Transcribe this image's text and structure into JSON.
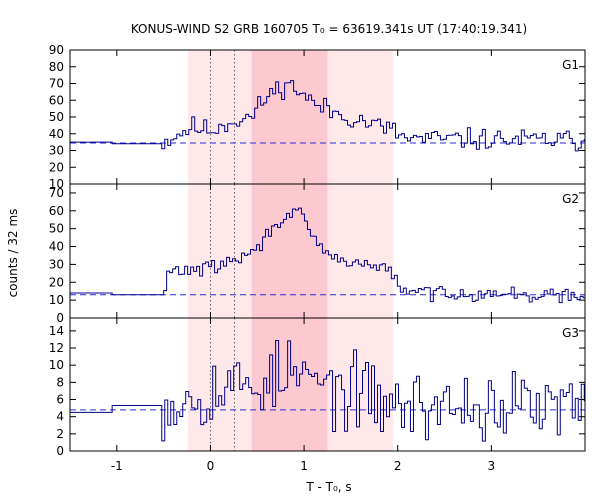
{
  "chart_data": {
    "type": "line",
    "title": "KONUS-WIND S2 GRB 160705 T₀ = 63619.341s UT (17:40:19.341)",
    "xlabel": "T - T₀, s",
    "ylabel": "counts / 32 ms",
    "xlim": [
      -1.5,
      4.0
    ],
    "x_ticks": [
      -1,
      0,
      1,
      2,
      3
    ],
    "x_tick_labels": [
      "-1",
      "0",
      "1",
      "2",
      "3"
    ],
    "bin_width_s": 0.032,
    "colors": {
      "series": "#00008b",
      "background_level": "#2b2bd6",
      "shade_light": "#ffe8ea",
      "shade_dark": "#fbc9cf",
      "marker_lines": "#444444"
    },
    "shaded_intervals": [
      {
        "start": -0.24,
        "end": 0.44,
        "tone": "light"
      },
      {
        "start": 0.44,
        "end": 1.25,
        "tone": "dark"
      },
      {
        "start": 1.25,
        "end": 1.95,
        "tone": "light"
      }
    ],
    "marker_lines_x": [
      0.0,
      0.256
    ],
    "panels": [
      {
        "label": "G1",
        "ylim": [
          10,
          90
        ],
        "y_ticks": [
          10,
          20,
          30,
          40,
          50,
          60,
          70,
          80,
          90
        ],
        "background_level": 34.5,
        "pre_trigger": [
          {
            "start": -1.5,
            "end": -1.05,
            "value": 35
          },
          {
            "start": -1.05,
            "end": -0.52,
            "value": 34
          }
        ],
        "profile": [
          {
            "t": -0.5,
            "v": 35
          },
          {
            "t": -0.2,
            "v": 44
          },
          {
            "t": 0.0,
            "v": 42
          },
          {
            "t": 0.2,
            "v": 47
          },
          {
            "t": 0.44,
            "v": 50
          },
          {
            "t": 0.6,
            "v": 62
          },
          {
            "t": 0.8,
            "v": 70
          },
          {
            "t": 0.95,
            "v": 66
          },
          {
            "t": 1.1,
            "v": 58
          },
          {
            "t": 1.3,
            "v": 53
          },
          {
            "t": 1.6,
            "v": 48
          },
          {
            "t": 1.9,
            "v": 43
          },
          {
            "t": 2.1,
            "v": 37
          },
          {
            "t": 4.0,
            "v": 36
          }
        ],
        "noise_amplitude": 5,
        "seed": 11
      },
      {
        "label": "G2",
        "ylim": [
          0,
          75
        ],
        "y_ticks": [
          0,
          10,
          20,
          30,
          40,
          50,
          60,
          70
        ],
        "background_level": 13,
        "pre_trigger": [
          {
            "start": -1.5,
            "end": -1.05,
            "value": 14
          },
          {
            "start": -1.05,
            "end": -0.5,
            "value": 13
          }
        ],
        "profile": [
          {
            "t": -0.48,
            "v": 14
          },
          {
            "t": -0.45,
            "v": 26
          },
          {
            "t": 0.0,
            "v": 28
          },
          {
            "t": 0.3,
            "v": 33
          },
          {
            "t": 0.5,
            "v": 38
          },
          {
            "t": 0.65,
            "v": 50
          },
          {
            "t": 0.85,
            "v": 60
          },
          {
            "t": 0.95,
            "v": 58
          },
          {
            "t": 1.1,
            "v": 44
          },
          {
            "t": 1.3,
            "v": 33
          },
          {
            "t": 1.6,
            "v": 31
          },
          {
            "t": 1.9,
            "v": 27
          },
          {
            "t": 1.97,
            "v": 25
          },
          {
            "t": 2.0,
            "v": 15
          },
          {
            "t": 4.0,
            "v": 12
          }
        ],
        "noise_amplitude": 3.2,
        "seed": 29
      },
      {
        "label": "G3",
        "ylim": [
          0,
          15.5
        ],
        "y_ticks": [
          0,
          2,
          4,
          6,
          8,
          10,
          12,
          14
        ],
        "background_level": 4.8,
        "pre_trigger": [
          {
            "start": -1.5,
            "end": -1.05,
            "value": 4.5
          },
          {
            "start": -1.05,
            "end": -0.52,
            "value": 5.3
          }
        ],
        "profile": [
          {
            "t": -0.5,
            "v": 5.5
          },
          {
            "t": 0.0,
            "v": 7.0
          },
          {
            "t": 0.5,
            "v": 8.0
          },
          {
            "t": 0.9,
            "v": 9.0
          },
          {
            "t": 1.2,
            "v": 7.5
          },
          {
            "t": 1.6,
            "v": 6.5
          },
          {
            "t": 2.0,
            "v": 5.3
          },
          {
            "t": 4.0,
            "v": 5.0
          }
        ],
        "noise_amplitude": 3.3,
        "seed": 53
      }
    ]
  }
}
